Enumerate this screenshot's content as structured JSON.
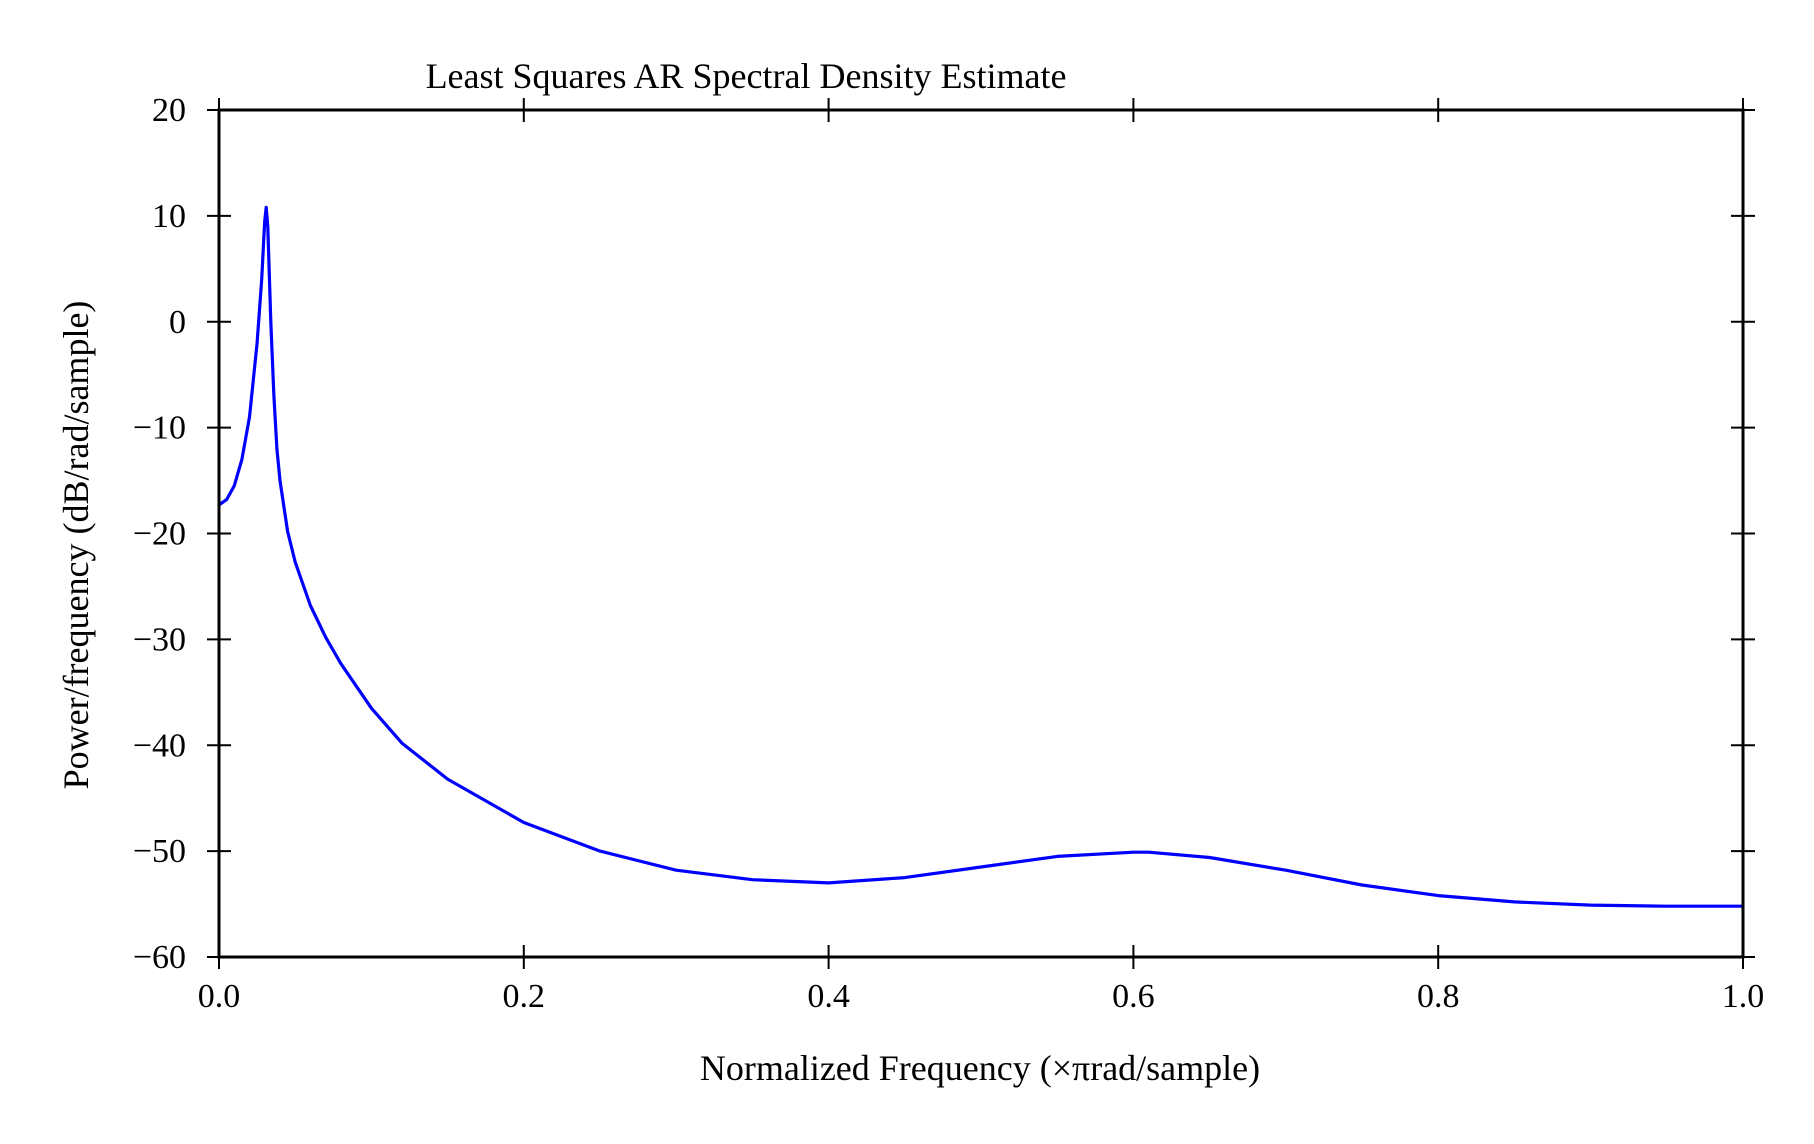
{
  "chart_data": {
    "type": "line",
    "title": "Least Squares AR Spectral Density Estimate",
    "xlabel": "Normalized Frequency (×πrad/sample)",
    "ylabel": "Power/frequency (dB/rad/sample)",
    "xlim": [
      0.0,
      1.0
    ],
    "ylim": [
      -60,
      20
    ],
    "x_ticks": [
      0.0,
      0.2,
      0.4,
      0.6,
      0.8,
      1.0
    ],
    "x_tick_labels": [
      "0.0",
      "0.2",
      "0.4",
      "0.6",
      "0.8",
      "1.0"
    ],
    "y_ticks": [
      20,
      10,
      0,
      -10,
      -20,
      -30,
      -40,
      -50,
      -60
    ],
    "y_tick_labels": [
      "20",
      "10",
      "0",
      "−10",
      "−20",
      "−30",
      "−40",
      "−50",
      "−60"
    ],
    "grid": false,
    "series": [
      {
        "color": "#0000ff",
        "x": [
          0.0,
          0.005,
          0.01,
          0.015,
          0.02,
          0.025,
          0.028,
          0.03,
          0.031,
          0.032,
          0.034,
          0.036,
          0.038,
          0.04,
          0.045,
          0.05,
          0.06,
          0.07,
          0.08,
          0.1,
          0.12,
          0.15,
          0.2,
          0.25,
          0.3,
          0.35,
          0.4,
          0.45,
          0.5,
          0.55,
          0.6,
          0.61,
          0.65,
          0.7,
          0.75,
          0.8,
          0.85,
          0.9,
          0.95,
          1.0
        ],
        "y": [
          -17.3,
          -16.8,
          -15.5,
          -13.0,
          -9.0,
          -2.0,
          4.0,
          9.5,
          10.8,
          9.0,
          0.0,
          -7.0,
          -12.0,
          -15.0,
          -19.8,
          -22.7,
          -26.8,
          -29.8,
          -32.3,
          -36.5,
          -39.8,
          -43.2,
          -47.3,
          -50.0,
          -51.8,
          -52.7,
          -53.0,
          -52.5,
          -51.5,
          -50.5,
          -50.1,
          -50.1,
          -50.6,
          -51.8,
          -53.2,
          -54.2,
          -54.8,
          -55.1,
          -55.2,
          -55.2
        ]
      }
    ]
  }
}
